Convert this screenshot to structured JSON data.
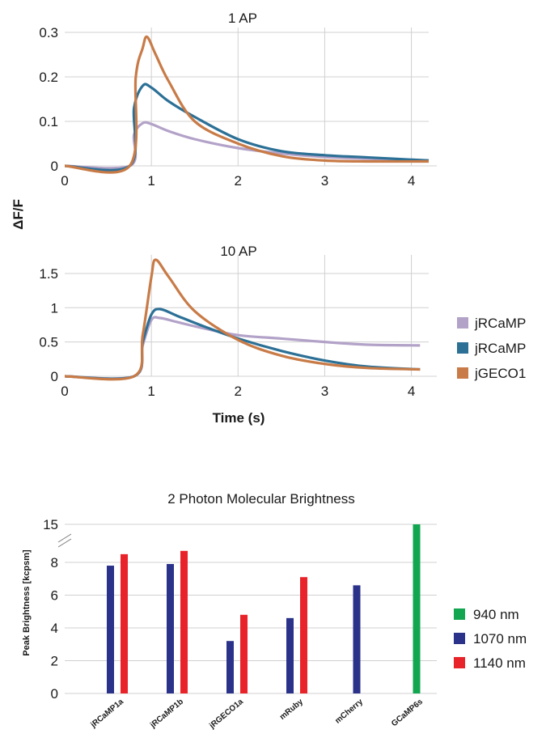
{
  "ylabel_shared": "ΔF/F",
  "legend_traces": [
    {
      "name": "jRCaMP",
      "color": "#b3a2c8"
    },
    {
      "name": "jRCaMP",
      "color": "#2c7096"
    },
    {
      "name": "jGECO1",
      "color": "#c87b47"
    }
  ],
  "legend_bars": [
    {
      "name": "940 nm",
      "color": "#12a650"
    },
    {
      "name": "1070 nm",
      "color": "#2a3289"
    },
    {
      "name": "1140 nm",
      "color": "#e8232a"
    }
  ],
  "chart_data": [
    {
      "type": "line",
      "title": "1 AP",
      "xlabel": "",
      "ylabel": "ΔF/F",
      "xlim": [
        0,
        4.2
      ],
      "ylim": [
        0,
        0.3
      ],
      "xticks": [
        "0",
        "1",
        "2",
        "3",
        "4"
      ],
      "yticks": [
        "0",
        "0.1",
        "0.2",
        "0.3"
      ],
      "grid": "vertical",
      "series": [
        {
          "color": "#b3a2c8",
          "points": [
            [
              0,
              0
            ],
            [
              0.75,
              0
            ],
            [
              0.8,
              0.07
            ],
            [
              0.9,
              0.096
            ],
            [
              1.0,
              0.094
            ],
            [
              1.2,
              0.078
            ],
            [
              1.5,
              0.06
            ],
            [
              2.0,
              0.04
            ],
            [
              2.5,
              0.028
            ],
            [
              3.0,
              0.02
            ],
            [
              3.5,
              0.016
            ],
            [
              4.2,
              0.012
            ]
          ]
        },
        {
          "color": "#2c7096",
          "points": [
            [
              0,
              0
            ],
            [
              0.75,
              0
            ],
            [
              0.8,
              0.13
            ],
            [
              0.9,
              0.18
            ],
            [
              1.0,
              0.176
            ],
            [
              1.2,
              0.145
            ],
            [
              1.5,
              0.11
            ],
            [
              2.0,
              0.06
            ],
            [
              2.5,
              0.033
            ],
            [
              3.0,
              0.024
            ],
            [
              3.5,
              0.019
            ],
            [
              4.2,
              0.012
            ]
          ]
        },
        {
          "color": "#c87b47",
          "points": [
            [
              0,
              0
            ],
            [
              0.75,
              0
            ],
            [
              0.82,
              0.2
            ],
            [
              0.9,
              0.265
            ],
            [
              0.95,
              0.29
            ],
            [
              1.05,
              0.25
            ],
            [
              1.2,
              0.19
            ],
            [
              1.5,
              0.1
            ],
            [
              2.0,
              0.05
            ],
            [
              2.5,
              0.022
            ],
            [
              3.0,
              0.012
            ],
            [
              3.5,
              0.01
            ],
            [
              4.2,
              0.01
            ]
          ]
        }
      ]
    },
    {
      "type": "line",
      "title": "10 AP",
      "xlabel": "Time (s)",
      "ylabel": "ΔF/F",
      "xlim": [
        0,
        4.2
      ],
      "ylim": [
        0,
        1.7
      ],
      "xticks": [
        "0",
        "1",
        "2",
        "3",
        "4"
      ],
      "yticks": [
        "0",
        "0.5",
        "1",
        "1.5"
      ],
      "grid": "vertical",
      "series": [
        {
          "color": "#b3a2c8",
          "points": [
            [
              0,
              0
            ],
            [
              0.8,
              0
            ],
            [
              0.9,
              0.45
            ],
            [
              1.0,
              0.82
            ],
            [
              1.1,
              0.85
            ],
            [
              1.3,
              0.79
            ],
            [
              1.6,
              0.7
            ],
            [
              2.0,
              0.6
            ],
            [
              2.5,
              0.55
            ],
            [
              3.0,
              0.5
            ],
            [
              3.5,
              0.46
            ],
            [
              4.1,
              0.45
            ]
          ]
        },
        {
          "color": "#2c7096",
          "points": [
            [
              0,
              0
            ],
            [
              0.8,
              0
            ],
            [
              0.9,
              0.5
            ],
            [
              1.0,
              0.9
            ],
            [
              1.1,
              0.98
            ],
            [
              1.3,
              0.88
            ],
            [
              1.6,
              0.73
            ],
            [
              2.0,
              0.55
            ],
            [
              2.5,
              0.37
            ],
            [
              3.0,
              0.23
            ],
            [
              3.5,
              0.14
            ],
            [
              4.1,
              0.1
            ]
          ]
        },
        {
          "color": "#c87b47",
          "points": [
            [
              0,
              0
            ],
            [
              0.8,
              0
            ],
            [
              0.9,
              0.6
            ],
            [
              1.0,
              1.45
            ],
            [
              1.05,
              1.7
            ],
            [
              1.2,
              1.45
            ],
            [
              1.5,
              0.95
            ],
            [
              2.0,
              0.53
            ],
            [
              2.5,
              0.3
            ],
            [
              3.0,
              0.18
            ],
            [
              3.5,
              0.12
            ],
            [
              4.1,
              0.1
            ]
          ]
        }
      ]
    },
    {
      "type": "bar",
      "title": "2 Photon Molecular Brightness",
      "xlabel": "",
      "ylabel": "Peak Brightness [kcpsm]",
      "ylim": [
        0,
        15
      ],
      "yticks": [
        "0",
        "2",
        "4",
        "6",
        "8",
        "15"
      ],
      "axis_break": true,
      "categories": [
        "jRCaMP1a",
        "jRCaMP1b",
        "jRGECO1a",
        "mRuby",
        "mCherry",
        "GCaMP6s"
      ],
      "series": [
        {
          "name": "940 nm",
          "color": "#12a650",
          "values": [
            null,
            null,
            null,
            null,
            null,
            15
          ]
        },
        {
          "name": "1070 nm",
          "color": "#2a3289",
          "values": [
            7.8,
            7.9,
            3.2,
            4.6,
            6.6,
            null
          ]
        },
        {
          "name": "1140 nm",
          "color": "#e8232a",
          "values": [
            8.5,
            8.7,
            4.8,
            7.1,
            null,
            null
          ]
        }
      ]
    }
  ]
}
